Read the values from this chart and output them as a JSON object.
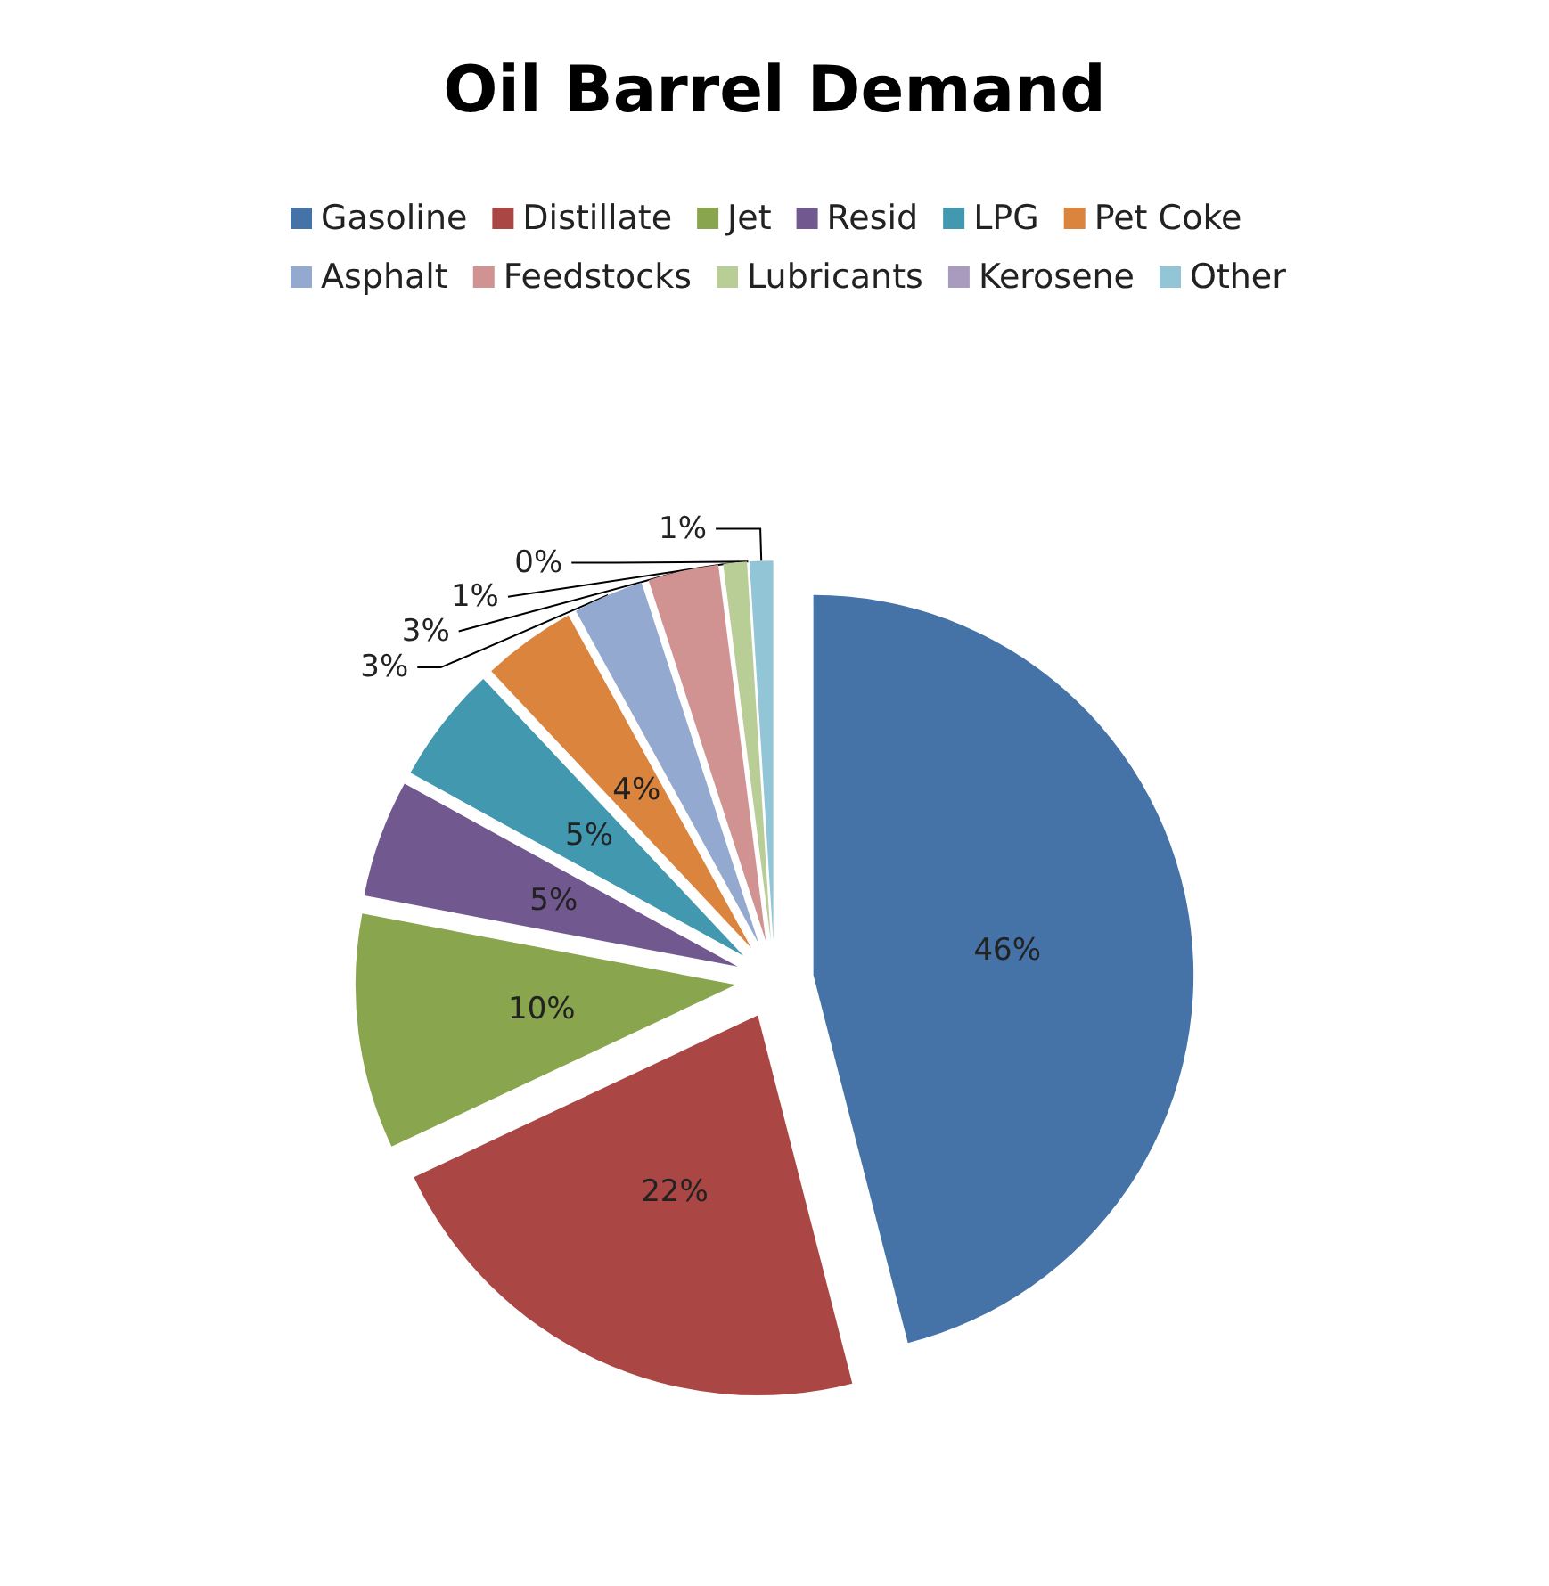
{
  "chart_data": {
    "type": "pie",
    "title": "Oil Barrel Demand",
    "categories": [
      "Gasoline",
      "Distillate",
      "Jet",
      "Resid",
      "LPG",
      "Pet Coke",
      "Asphalt",
      "Feedstocks",
      "Lubricants",
      "Kerosene",
      "Other"
    ],
    "values": [
      46,
      22,
      10,
      5,
      5,
      4,
      3,
      3,
      1,
      0,
      1
    ],
    "colors": [
      "#4572a7",
      "#aa4643",
      "#89a54e",
      "#71588f",
      "#4198af",
      "#db843d",
      "#93a9cf",
      "#d19392",
      "#b9cd96",
      "#a99bbd",
      "#92c5d6"
    ],
    "value_labels": [
      "46%",
      "22%",
      "10%",
      "5%",
      "5%",
      "4%",
      "3%",
      "3%",
      "1%",
      "0%",
      "1%"
    ],
    "legend": "top"
  }
}
